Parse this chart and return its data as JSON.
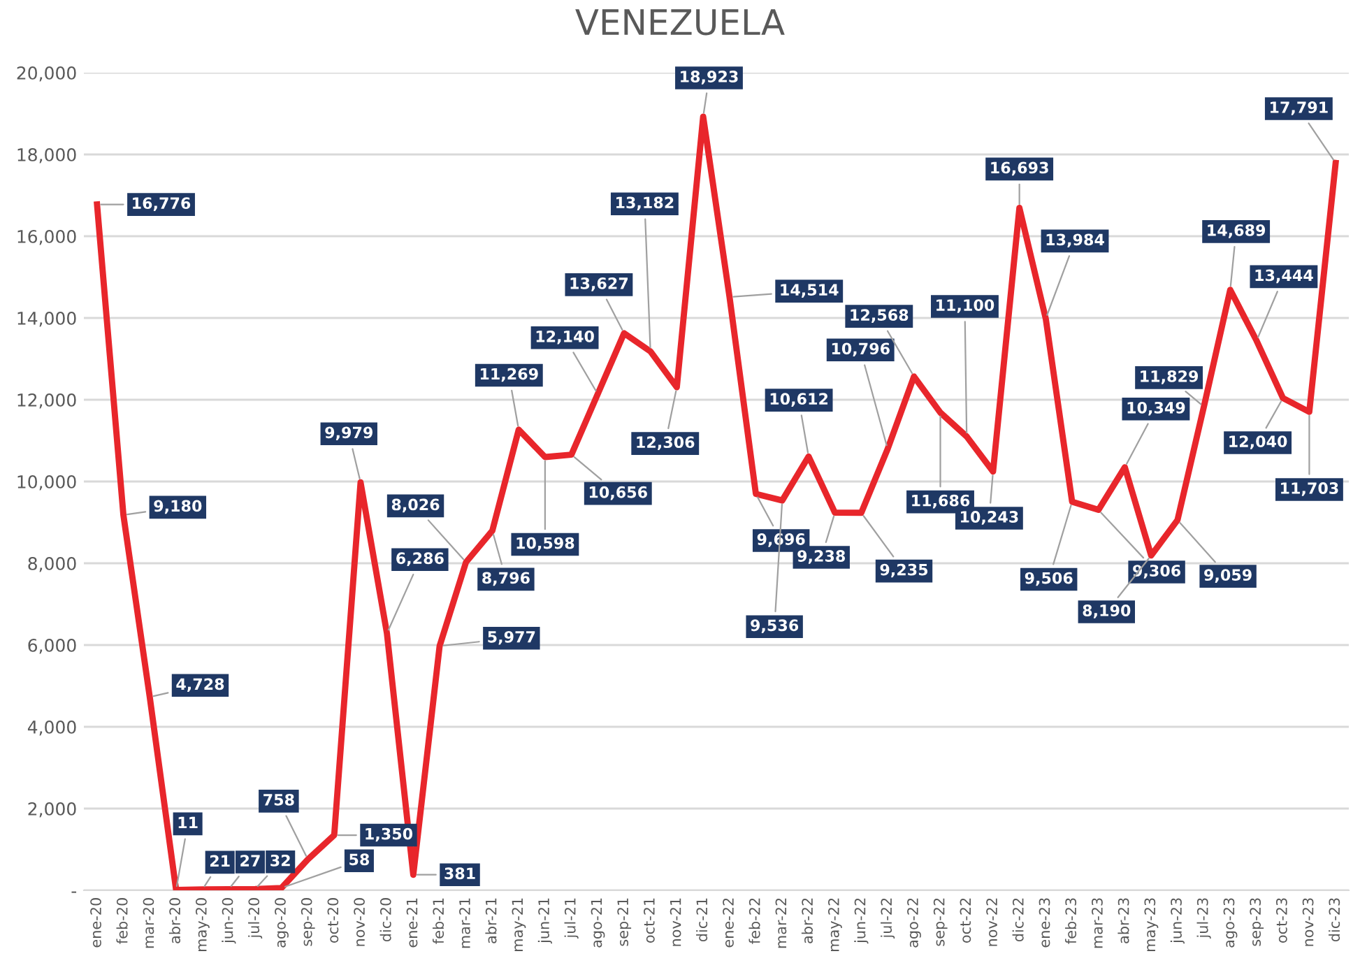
{
  "chart_data": {
    "type": "line",
    "title": "VENEZUELA",
    "categories": [
      "ene-20",
      "feb-20",
      "mar-20",
      "abr-20",
      "may-20",
      "jun-20",
      "jul-20",
      "ago-20",
      "sep-20",
      "oct-20",
      "nov-20",
      "dic-20",
      "ene-21",
      "feb-21",
      "mar-21",
      "abr-21",
      "may-21",
      "jun-21",
      "jul-21",
      "ago-21",
      "sep-21",
      "oct-21",
      "nov-21",
      "dic-21",
      "ene-22",
      "feb-22",
      "mar-22",
      "abr-22",
      "may-22",
      "jun-22",
      "jul-22",
      "ago-22",
      "sep-22",
      "oct-22",
      "nov-22",
      "dic-22",
      "ene-23",
      "feb-23",
      "mar-23",
      "abr-23",
      "may-23",
      "jun-23",
      "jul-23",
      "ago-23",
      "sep-23",
      "oct-23",
      "nov-23",
      "dic-23"
    ],
    "series": [
      {
        "color": "#e8262b",
        "values": [
          16776,
          9180,
          4728,
          11,
          21,
          27,
          32,
          58,
          758,
          1350,
          9979,
          6286,
          381,
          5977,
          8026,
          8796,
          11269,
          10598,
          10656,
          12140,
          13627,
          13182,
          12306,
          18923,
          14514,
          9696,
          9536,
          10612,
          9238,
          9235,
          10796,
          12568,
          11686,
          11100,
          10243,
          16693,
          13984,
          9506,
          9306,
          10349,
          8190,
          9059,
          11829,
          14689,
          13444,
          12040,
          11703,
          17791
        ],
        "value_labels": [
          "16,776",
          "9,180",
          "4,728",
          "11",
          "21",
          "27",
          "32",
          "58",
          "758",
          "1,350",
          "9,979",
          "6,286",
          "381",
          "5,977",
          "8,026",
          "8,796",
          "11,269",
          "10,598",
          "10,656",
          "12,140",
          "13,627",
          "13,182",
          "12,306",
          "18,923",
          "14,514",
          "9,696",
          "9,536",
          "10,612",
          "9,238",
          "9,235",
          "10,796",
          "12,568",
          "11,686",
          "11,100",
          "10,243",
          "16,693",
          "13,984",
          "9,506",
          "9,306",
          "10,349",
          "8,190",
          "9,059",
          "11,829",
          "14,689",
          "13,444",
          "12,040",
          "11,703",
          "17,791"
        ]
      }
    ],
    "ylim": [
      0,
      20000
    ],
    "yticks": [
      {
        "value": 0,
        "label": "-"
      },
      {
        "value": 2000,
        "label": "2,000"
      },
      {
        "value": 4000,
        "label": "4,000"
      },
      {
        "value": 6000,
        "label": "6,000"
      },
      {
        "value": 8000,
        "label": "8,000"
      },
      {
        "value": 10000,
        "label": "10,000"
      },
      {
        "value": 12000,
        "label": "12,000"
      },
      {
        "value": 14000,
        "label": "14,000"
      },
      {
        "value": 16000,
        "label": "16,000"
      },
      {
        "value": 18000,
        "label": "18,000"
      },
      {
        "value": 20000,
        "label": "20,000"
      }
    ],
    "grid": "y",
    "marker": "none",
    "line_style": "solid"
  }
}
